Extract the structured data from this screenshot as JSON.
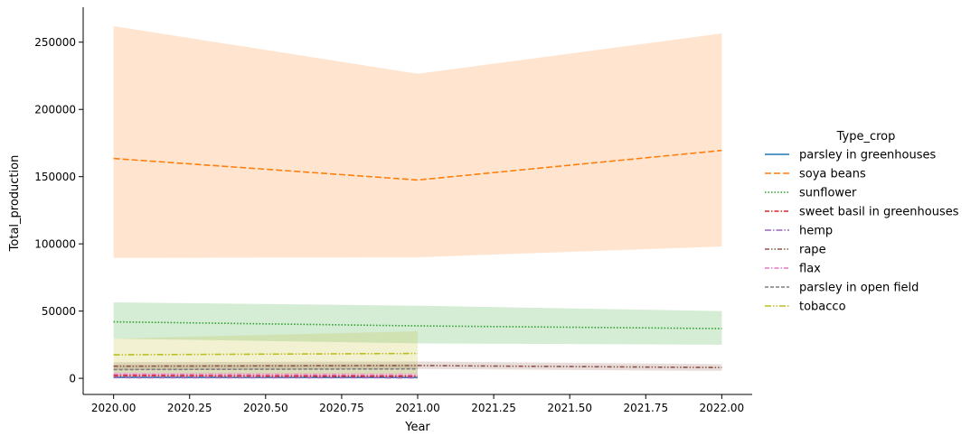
{
  "chart_data": {
    "type": "line",
    "title": "",
    "xlabel": "Year",
    "ylabel": "Total_production",
    "xlim": [
      2019.9,
      2022.1
    ],
    "ylim": [
      -12000,
      276000
    ],
    "xticks": [
      2020.0,
      2020.25,
      2020.5,
      2020.75,
      2021.0,
      2021.25,
      2021.5,
      2021.75,
      2022.0
    ],
    "xtick_labels": [
      "2020.00",
      "2020.25",
      "2020.50",
      "2020.75",
      "2021.00",
      "2021.25",
      "2021.50",
      "2021.75",
      "2022.00"
    ],
    "yticks": [
      0,
      50000,
      100000,
      150000,
      200000,
      250000
    ],
    "ytick_labels": [
      "0",
      "50000",
      "100000",
      "150000",
      "200000",
      "250000"
    ],
    "grid": false,
    "legend": {
      "title": "Type_crop",
      "position": "right"
    },
    "series": [
      {
        "name": "parsley in greenhouses",
        "color": "#1f77b4",
        "dash": "",
        "x": [
          2020,
          2021
        ],
        "y": [
          700,
          600
        ],
        "lower": [
          200,
          200
        ],
        "upper": [
          1200,
          1000
        ]
      },
      {
        "name": "soya beans",
        "color": "#ff7f0e",
        "dash": "7,3",
        "x": [
          2020,
          2021,
          2022
        ],
        "y": [
          163500,
          147500,
          169500
        ],
        "lower": [
          89500,
          90000,
          98000
        ],
        "upper": [
          262000,
          226500,
          256500
        ]
      },
      {
        "name": "sunflower",
        "color": "#2ca02c",
        "dash": "1.5,2",
        "x": [
          2020,
          2021,
          2022
        ],
        "y": [
          42000,
          39000,
          37000
        ],
        "lower": [
          29500,
          26000,
          25000
        ],
        "upper": [
          56500,
          54000,
          50000
        ]
      },
      {
        "name": "sweet basil in greenhouses",
        "color": "#d62728",
        "dash": "5,2,1.5,2",
        "x": [
          2020,
          2021
        ],
        "y": [
          2000,
          1500
        ],
        "lower": [
          800,
          600
        ],
        "upper": [
          3200,
          2500
        ]
      },
      {
        "name": "hemp",
        "color": "#9467bd",
        "dash": "7,2,1.5,2",
        "x": [
          2020,
          2021
        ],
        "y": [
          500,
          400
        ],
        "lower": [
          100,
          100
        ],
        "upper": [
          900,
          800
        ]
      },
      {
        "name": "rape",
        "color": "#8c564b",
        "dash": "5,2,1.5,2,1.5,2",
        "x": [
          2020,
          2021,
          2022
        ],
        "y": [
          9000,
          9500,
          8000
        ],
        "lower": [
          6000,
          7000,
          5500
        ],
        "upper": [
          12000,
          12500,
          10500
        ]
      },
      {
        "name": "flax",
        "color": "#e377c2",
        "dash": "5,2,1.5,2",
        "x": [
          2020,
          2021
        ],
        "y": [
          3000,
          2500
        ],
        "lower": [
          1500,
          1000
        ],
        "upper": [
          4500,
          4000
        ]
      },
      {
        "name": "parsley in open field",
        "color": "#7f7f7f",
        "dash": "4,2",
        "x": [
          2020,
          2021
        ],
        "y": [
          6500,
          7000
        ],
        "lower": [
          3000,
          3500
        ],
        "upper": [
          10000,
          10500
        ]
      },
      {
        "name": "tobacco",
        "color": "#bcbd22",
        "dash": "7,2,1.5,2,1.5,2",
        "x": [
          2020,
          2021
        ],
        "y": [
          17500,
          18500
        ],
        "lower": [
          4000,
          2000
        ],
        "upper": [
          29500,
          35000
        ]
      }
    ]
  }
}
